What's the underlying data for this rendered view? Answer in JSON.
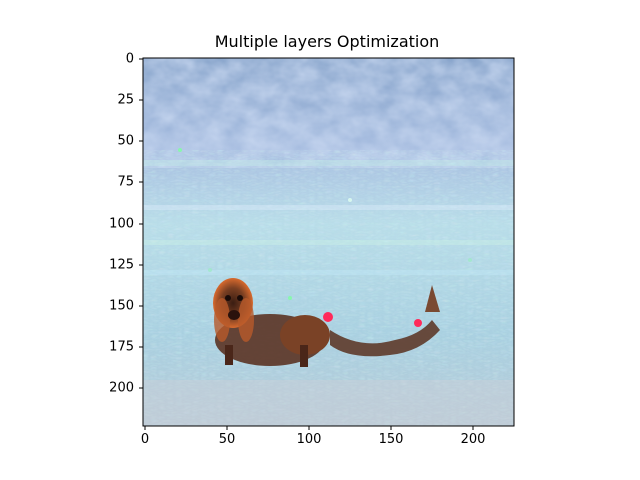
{
  "figure": {
    "title": "Multiple layers Optimization"
  },
  "axes": {
    "x_ticks": [
      "0",
      "50",
      "100",
      "150",
      "200"
    ],
    "y_ticks": [
      "0",
      "25",
      "50",
      "75",
      "100",
      "125",
      "150",
      "175",
      "200"
    ],
    "x_range": [
      0,
      224
    ],
    "y_range": [
      0,
      224
    ]
  },
  "image": {
    "description_colors": {
      "sky_blue": "#9fb8dc",
      "pale_cyan": "#b8e6ec",
      "lavender": "#b7b3e8",
      "mint": "#9fe8c8",
      "dog_brown": "#6a3a24",
      "dog_orange": "#d86a2e",
      "highlight_red": "#ff2a5a"
    }
  }
}
